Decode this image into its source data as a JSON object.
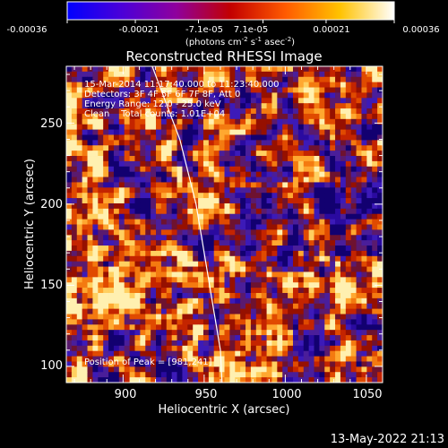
{
  "colorbar": {
    "ticks": [
      "-0.00036",
      "-0.00021",
      "-7.1e-05",
      "7.1e-05",
      "0.00021",
      "0.00036"
    ],
    "tick_values": [
      -0.00036,
      -0.00021,
      -7.1e-05,
      7.1e-05,
      0.00021,
      0.00036
    ],
    "range": [
      -0.00036,
      0.00036
    ],
    "unit_main": "(photons cm",
    "unit_sup1": "-2",
    "unit_mid": " s",
    "unit_sup2": "-1",
    "unit_end": " asec",
    "unit_sup3": "-2",
    "unit_close": ")",
    "colors": [
      "#0000ff",
      "#4b00d8",
      "#8f009d",
      "#c30000",
      "#ff5a00",
      "#ffc200",
      "#ffffff"
    ]
  },
  "annotations": {
    "line1": "15-Mar-2014 11:17:40.000 to 11:23:40.000",
    "line2": "Detectors: 3F 4F 5F 6F 7F 8F, Att 0",
    "line3": "Energy Range: 12.0 - 25.0 keV",
    "line4": "Clean    Total counts: 1.01E+04",
    "peak": "Position of Peak = [981,241]"
  },
  "timestamp": "13-May-2022 21:13",
  "chart_data": {
    "type": "heatmap",
    "title": "Reconstructed RHESSI Image",
    "xlabel": "Heliocentric X (arcsec)",
    "ylabel": "Heliocentric Y (arcsec)",
    "xlim": [
      865,
      1060
    ],
    "ylim": [
      90,
      285
    ],
    "xticks": [
      900,
      950,
      1000,
      1050
    ],
    "yticks": [
      100,
      150,
      200,
      250
    ],
    "peak": {
      "x": 981,
      "y": 241
    },
    "limb_curve": {
      "x": [
        918,
        935,
        945,
        950,
        955,
        960,
        961
      ],
      "y": [
        285,
        240,
        200,
        170,
        140,
        110,
        90
      ]
    }
  }
}
